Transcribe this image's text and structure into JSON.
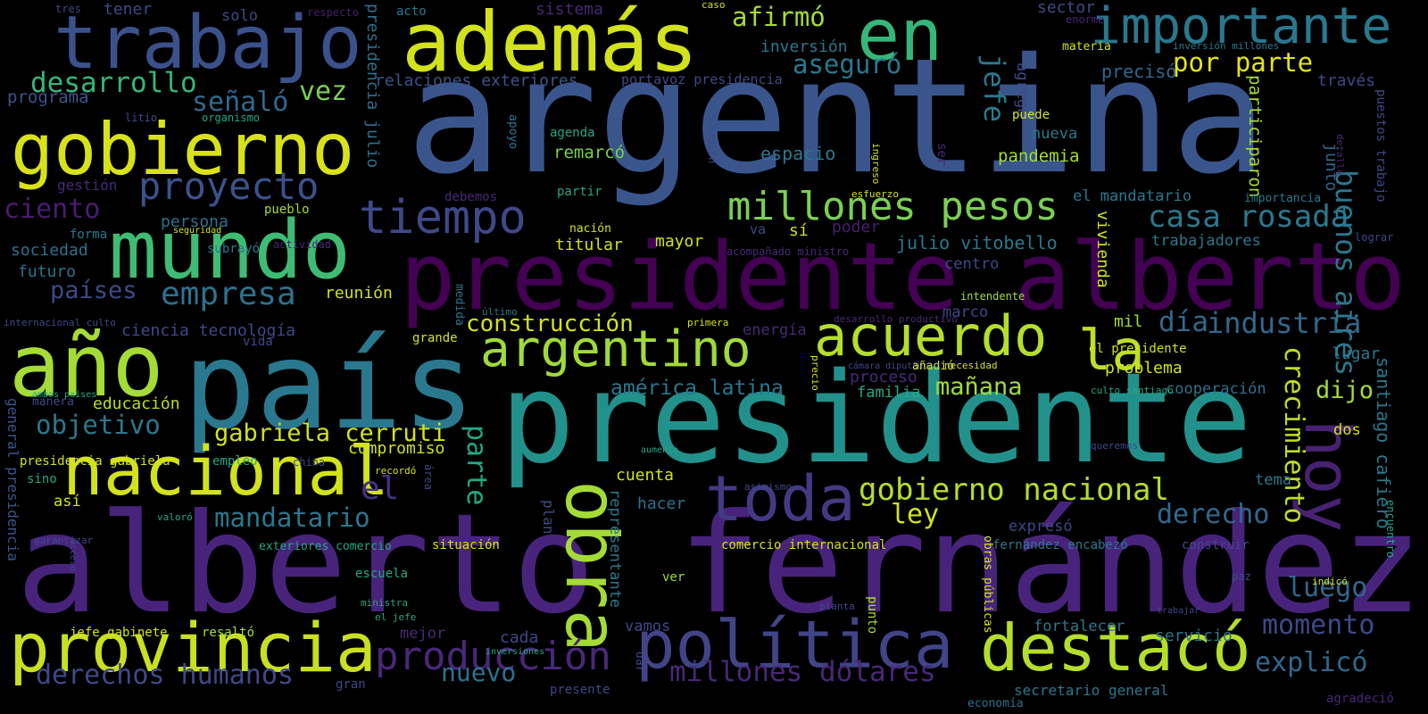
{
  "palette": {
    "background": "#000000",
    "yellow": "#d2e21b",
    "lime": "#a5db36",
    "green": "#4ac16d",
    "teal": "#22a884",
    "cyan": "#2a788e",
    "blue": "#39558c",
    "indigo": "#46327e",
    "purple": "#440154"
  },
  "words": [
    "argentina",
    "presidente",
    "alberto fernández",
    "presidente alberto",
    "país",
    "además",
    "trabajo",
    "importante",
    "en",
    "gobierno",
    "mundo",
    "año",
    "nacional",
    "provincia",
    "obra",
    "toda",
    "política",
    "destacó",
    "hoy",
    "argentino",
    "acuerdo",
    "la",
    "tiempo",
    "millones pesos",
    "proyecto",
    "empresa",
    "gobierno nacional",
    "producción",
    "casa rosada",
    "industria",
    "desarrollo",
    "afirmó",
    "aseguró",
    "por parte",
    "buenos aires",
    "jefe",
    "señaló",
    "vez",
    "mandatario",
    "gabriela cerruti",
    "construcción",
    "el",
    "parte",
    "ley",
    "derecho",
    "crecimiento",
    "luego",
    "momento",
    "explicó",
    "millones dólares",
    "derechos humanos",
    "nuevo",
    "objetivo",
    "ciento",
    "países",
    "américa latina",
    "mañana",
    "día",
    "dijo",
    "julio vitobello",
    "santiago cafiero",
    "presidencia julio",
    "relaciones exteriores",
    "portavoz presidencia",
    "inversión",
    "sector",
    "precisó",
    "través",
    "participaron",
    "agregó",
    "junto",
    "remarcó",
    "espacio",
    "pandemia",
    "nueva",
    "puede",
    "agenda",
    "apoyo",
    "programa",
    "litio",
    "organismo",
    "tener",
    "tres",
    "solo",
    "respecto",
    "acto",
    "sistema",
    "caso",
    "enorme",
    "materia",
    "inversión millones",
    "puestos trabajo",
    "detalló",
    "importancia",
    "lograr",
    "trabajadores",
    "el mandatario",
    "vivienda",
    "centro",
    "sí",
    "poder",
    "va",
    "mayor",
    "titular",
    "nación",
    "partir",
    "región",
    "ingreso",
    "esfuerzo",
    "ser",
    "debemos",
    "pueblo",
    "persona",
    "gestión",
    "seguridad",
    "forma",
    "sociedad",
    "futuro",
    "subrayó",
    "actividad",
    "reunión",
    "medida",
    "último",
    "primera",
    "energía",
    "acompañado ministro",
    "intendente",
    "marco",
    "mil",
    "desarrollo productivo",
    "el presidente",
    "internacional culto",
    "ciencia tecnología",
    "vida",
    "grande",
    "educación",
    "manera",
    "cámara diputado",
    "añadió",
    "necesidad",
    "problema",
    "lugar",
    "proceso",
    "familia",
    "cooperación",
    "culto santiago",
    "ambos países",
    "precio",
    "compromiso",
    "empleo",
    "presidencia gabriela",
    "china",
    "recordó",
    "área",
    "aumento",
    "queremos",
    "dos",
    "sino",
    "así",
    "general presidencia",
    "cuenta",
    "hacer",
    "asimismo",
    "valoró",
    "plan",
    "representante",
    "tema",
    "encuentro",
    "garantizar",
    "exteriores comercio",
    "situación",
    "comercio internacional",
    "expresó",
    "construir",
    "fernández encabezó",
    "escuela",
    "ver",
    "paz",
    "indicó",
    "acceso",
    "ministra",
    "el jefe",
    "punto",
    "planta",
    "obras públicas",
    "jefe gabinete",
    "resaltó",
    "mejor",
    "cada",
    "vamos",
    "dar",
    "servicio",
    "fortalecer",
    "inversiones",
    "gran",
    "presente",
    "secretario general",
    "economía",
    "trabajar",
    "agradeció"
  ]
}
